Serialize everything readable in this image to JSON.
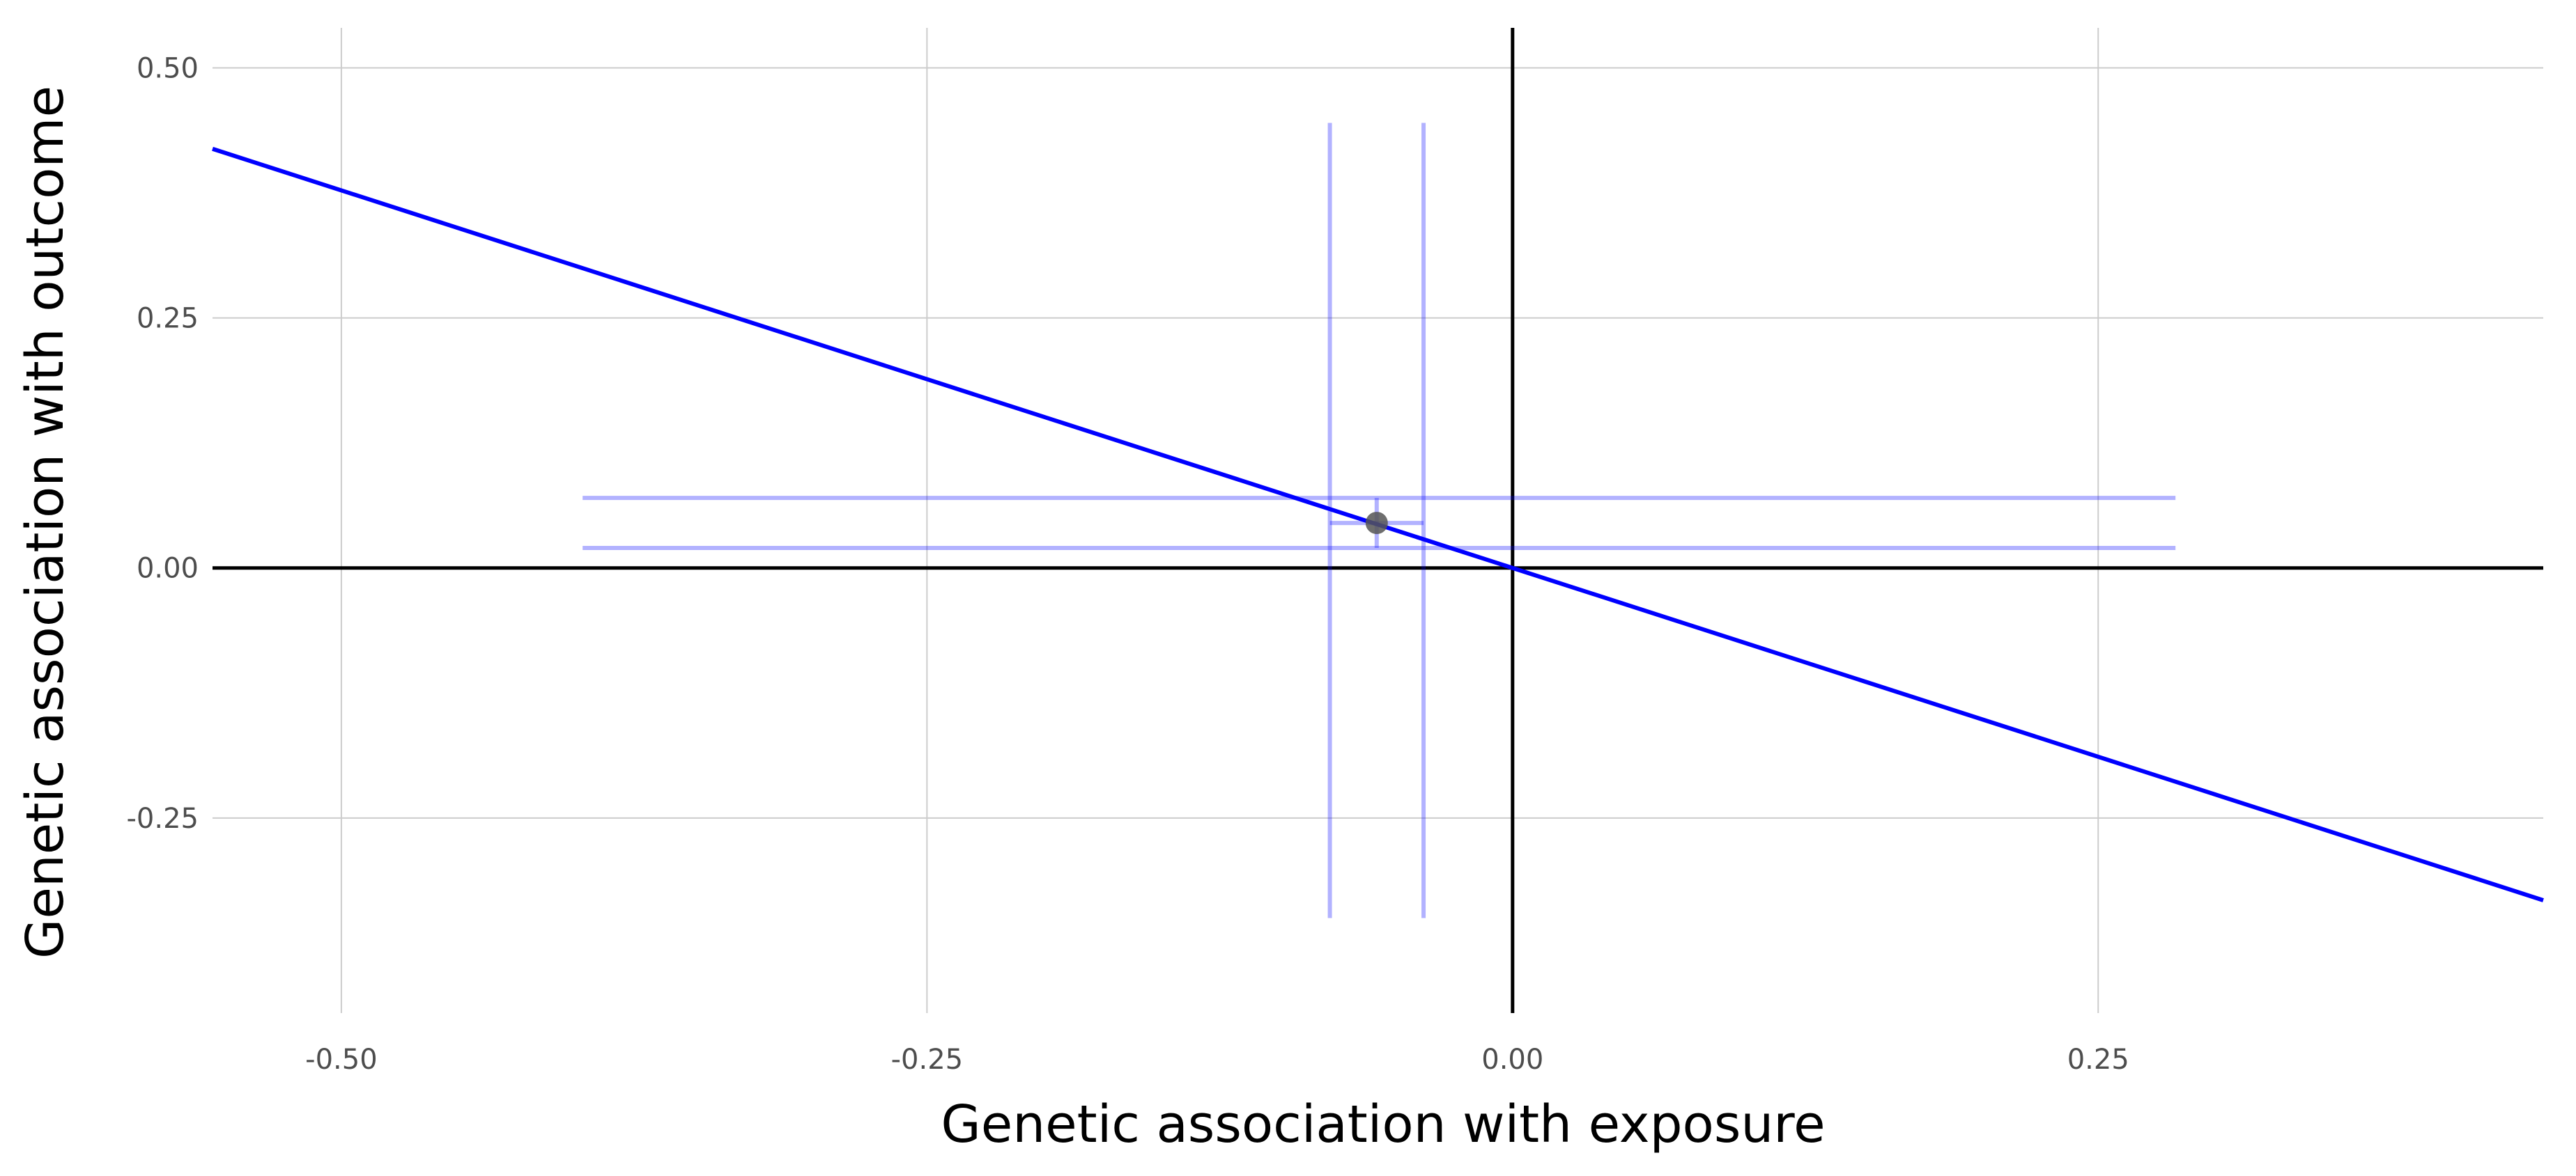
{
  "chart_data": {
    "type": "scatter",
    "xlabel": "Genetic association with exposure",
    "ylabel": "Genetic association with outcome",
    "xlim": [
      -0.555,
      0.44
    ],
    "ylim": [
      -0.445,
      0.54
    ],
    "x_ticks": [
      -0.5,
      -0.25,
      0.0,
      0.25
    ],
    "x_tick_labels": [
      "-0.50",
      "-0.25",
      "0.00",
      "0.25"
    ],
    "y_ticks": [
      0.5,
      0.25,
      0.0,
      -0.25
    ],
    "y_tick_labels": [
      "0.50",
      "0.25",
      "0.00",
      "-0.25"
    ],
    "grid": true,
    "reference_lines": {
      "x": 0,
      "y": 0,
      "color": "#000000"
    },
    "points": [
      {
        "x": -0.058,
        "y": 0.045,
        "x_ci_inner": [
          -0.078,
          -0.038
        ],
        "y_ci_inner": [
          0.02,
          0.07
        ],
        "x_ci_outer": [
          -0.397,
          0.283
        ],
        "y_ci_outer": [
          -0.35,
          0.445
        ]
      }
    ],
    "fit_line": {
      "intercept": 0.0,
      "slope": -0.755,
      "color": "#0000ff"
    },
    "colors": {
      "point": "#555555",
      "error_bars": "#0000ff",
      "fit_line": "#0000ff",
      "grid": "#cccccc",
      "axes": "#000000"
    }
  }
}
